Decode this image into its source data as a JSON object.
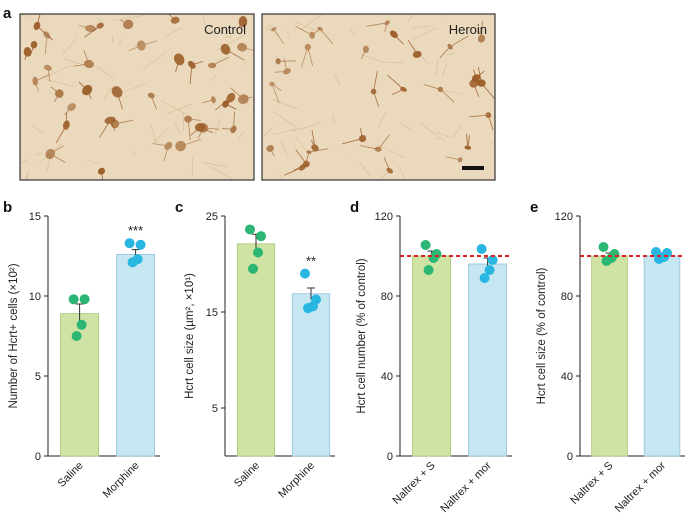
{
  "panel_a": {
    "label": "a",
    "images": [
      {
        "name": "control",
        "label": "Control",
        "cells": "dense"
      },
      {
        "name": "heroin",
        "label": "Heroin",
        "cells": "sparse"
      }
    ]
  },
  "colors": {
    "green_bar": "#cfe3a5",
    "green_bar_edge": "#a8c676",
    "green_dot": "#2bb673",
    "blue_bar": "#c6e7f2",
    "blue_bar_edge": "#8fc3da",
    "blue_dot": "#29b6e0",
    "ref_line": "#e02020",
    "micro_bg": "#ead9bd",
    "cell_color": "#9a5a24"
  },
  "chart_data": [
    {
      "panel": "b",
      "type": "bar",
      "categories": [
        "Saline",
        "Morphine"
      ],
      "values": [
        8.9,
        12.6
      ],
      "errors": [
        0.6,
        0.3
      ],
      "points": [
        [
          9.8,
          9.8,
          8.2,
          7.5
        ],
        [
          13.3,
          13.2,
          12.3,
          12.1
        ]
      ],
      "ylabel": "Number of Hcrt+ cells (×10²)",
      "ylim": [
        0,
        15
      ],
      "yticks": [
        0,
        5,
        10,
        15
      ],
      "significance": [
        {
          "category": "Morphine",
          "label": "***"
        }
      ]
    },
    {
      "panel": "c",
      "type": "bar",
      "categories": [
        "Saline",
        "Morphine"
      ],
      "values": [
        22.1,
        16.9
      ],
      "errors": [
        1.0,
        0.6
      ],
      "points": [
        [
          23.6,
          22.9,
          21.2,
          19.5
        ],
        [
          19.0,
          16.3,
          15.6,
          15.4
        ]
      ],
      "ylabel": "Hcrt cell size (µm², ×10¹)",
      "ylim": [
        0,
        25
      ],
      "yticks": [
        5,
        15,
        25
      ],
      "significance": [
        {
          "category": "Morphine",
          "label": "**"
        }
      ]
    },
    {
      "panel": "d",
      "type": "bar",
      "categories": [
        "Naltrex + S",
        "Naltrex + mor"
      ],
      "values": [
        100,
        96
      ],
      "errors": [
        2.5,
        3.0
      ],
      "points": [
        [
          105.5,
          101.0,
          99.0,
          93.0
        ],
        [
          103.5,
          98.0,
          93.0,
          89.0
        ]
      ],
      "ylabel": "Hcrt cell number (% of control)",
      "ylim": [
        0,
        120
      ],
      "yticks": [
        0,
        40,
        80,
        120
      ],
      "reference_line": 100
    },
    {
      "panel": "e",
      "type": "bar",
      "categories": [
        "Naltrex + S",
        "Naltrex + mor"
      ],
      "values": [
        100,
        100
      ],
      "errors": [
        1.5,
        1.5
      ],
      "points": [
        [
          104.5,
          101.0,
          99.0,
          97.5
        ],
        [
          102.0,
          101.5,
          99.5,
          98.5
        ]
      ],
      "ylabel": "Hcrt cell size (% of control)",
      "ylim": [
        0,
        120
      ],
      "yticks": [
        0,
        40,
        80,
        120
      ],
      "reference_line": 100
    }
  ]
}
